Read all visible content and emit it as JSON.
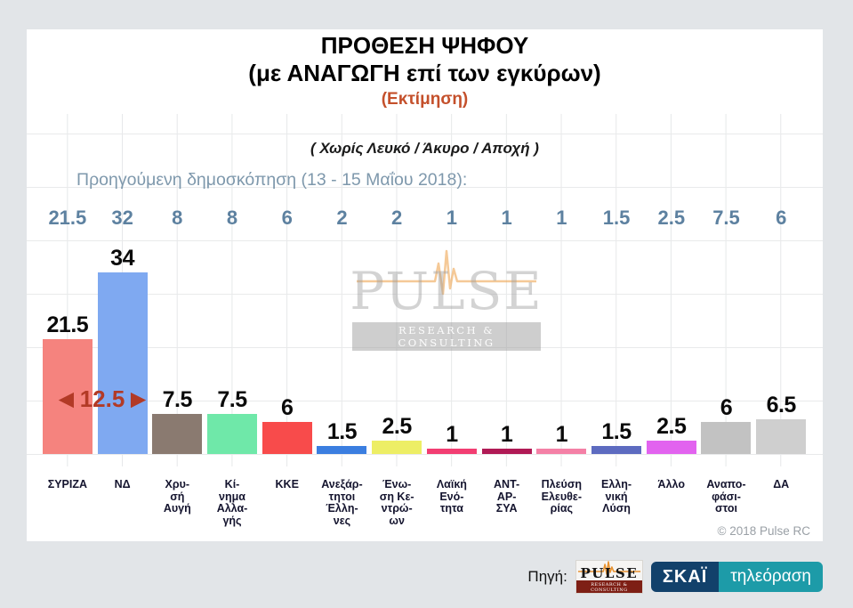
{
  "header": {
    "title_line1": "ΠΡΟΘΕΣΗ ΨΗΦΟΥ",
    "title_line2": "(με ΑΝΑΓΩΓΗ επί των εγκύρων)",
    "subtitle": "(Εκτίμηση)",
    "note": "( Χωρίς Λευκό / Άκυρο / Αποχή )",
    "prev_poll_label": "Προηγούμενη δημοσκόπηση (13 - 15 Μαΐου 2018):"
  },
  "annotation": {
    "left_arrow": "◀",
    "value": "12.5",
    "right_arrow": "▶",
    "color": "#B23A26"
  },
  "watermark": {
    "name": "PULSE",
    "tagline": "RESEARCH & CONSULTING"
  },
  "footer": {
    "copyright": "© 2018 Pulse RC",
    "source_label": "Πηγή:",
    "pulse_logo_name": "PULSE",
    "pulse_logo_tagline": "RESEARCH & CONSULTING",
    "skai_name": "ΣΚΑΪ",
    "skai_tagline": "τηλεόραση"
  },
  "colors": {
    "subtitle_red": "#C4502B",
    "annotation_red": "#B23A26",
    "steel_blue": "#5D81A0",
    "skai_navy": "#12416B",
    "skai_teal": "#1D9BA8",
    "pulse_orange": "#EFA653"
  },
  "chart_data": {
    "type": "bar",
    "title": "ΠΡΟΘΕΣΗ ΨΗΦΟΥ (με ΑΝΑΓΩΓΗ επί των εγκύρων) — (Εκτίμηση)",
    "subtitle": "( Χωρίς Λευκό / Άκυρο / Αποχή )",
    "categories": [
      "ΣΥΡΙΖΑ",
      "ΝΔ",
      "Χρυσή Αυγή",
      "Κίνημα Αλλαγής",
      "ΚΚΕ",
      "Ανεξάρτητοι Έλληνες",
      "Ένωση Κεντρώων",
      "Λαϊκή Ενότητα",
      "ΑΝΤΑΡΣΥΑ",
      "Πλεύση Ελευθερίας",
      "Ελληνική Λύση",
      "Άλλο",
      "Αναποφάσιστοι",
      "ΔΑ"
    ],
    "category_display": [
      "ΣΥΡΙΖΑ",
      "ΝΔ",
      "Χρυ-\nσή\nΑυγή",
      "Κί-\nνημα\nΑλλα-\nγής",
      "ΚΚΕ",
      "Ανεξάρ-\nτητοι\nΈλλη-\nνες",
      "Ένω-\nση Κε-\nντρώ-\nων",
      "Λαϊκή\nΕνό-\nτητα",
      "ΑΝΤ-\nΑΡ-\nΣΥΑ",
      "Πλεύση\nΕλευθε-\nρίας",
      "Ελλη-\nνική\nΛύση",
      "Άλλο",
      "Αναπο-\nφάσι-\nστοι",
      "ΔΑ"
    ],
    "series": [
      {
        "name": "Προηγούμενη δημοσκόπηση (13 - 15 Μαΐου 2018)",
        "values": [
          21.5,
          32,
          8,
          8,
          6,
          2,
          2,
          1,
          1,
          1,
          1.5,
          2.5,
          7.5,
          6
        ]
      },
      {
        "name": "Εκτίμηση",
        "values": [
          21.5,
          34,
          7.5,
          7.5,
          6,
          1.5,
          2.5,
          1,
          1,
          1,
          1.5,
          2.5,
          6,
          6.5
        ]
      }
    ],
    "bar_colors": [
      "#F5837E",
      "#7FA9F1",
      "#8A7A70",
      "#6FE8A9",
      "#F84B4B",
      "#3B7EE0",
      "#EDEE65",
      "#F23E72",
      "#B01A55",
      "#F480A6",
      "#5D6BC0",
      "#E263EF",
      "#C2C2C2",
      "#CFCFCF"
    ],
    "lead_gap_annotation": "12.5",
    "ylim": [
      0,
      40
    ],
    "grid": true,
    "legend_position": "none"
  }
}
